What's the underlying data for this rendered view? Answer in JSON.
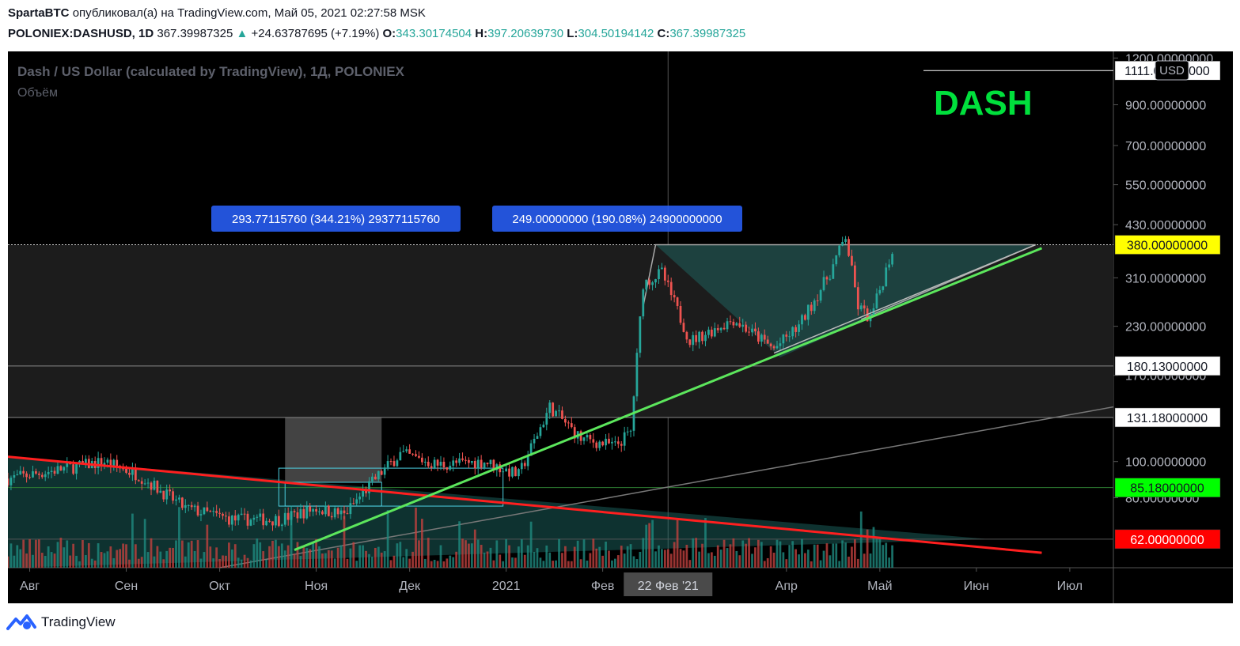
{
  "header": {
    "author": "SpartaBTC",
    "published_text": "опубликовал(а) на TradingView.com, Май 05, 2021 02:27:58 MSK",
    "symbol": "POLONIEX:DASHUSD, 1D",
    "last": "367.39987325",
    "change": "+24.63787695 (+7.19%)",
    "o_label": "O:",
    "o": "343.30174504",
    "h_label": "H:",
    "h": "397.20639730",
    "l_label": "L:",
    "l": "304.50194142",
    "c_label": "C:",
    "c": "367.39987325"
  },
  "chart_data": {
    "type": "candlestick",
    "title": "Dash / US Dollar (calculated by TradingView), 1Д, POLONIEX",
    "subtitle": "Объём",
    "watermark": "DASH",
    "scale": "log",
    "ylim": [
      52,
      1250
    ],
    "y_ticks": [
      1200,
      900,
      700,
      550,
      430,
      310,
      230,
      170,
      100,
      80
    ],
    "y_tick_labels": [
      "1200.00000000",
      "900.00000000",
      "700.00000000",
      "550.00000000",
      "430.00000000",
      "310.00000000",
      "230.00000000",
      "170.00000000",
      "100.00000000",
      "80.00000000"
    ],
    "currency_badge": "USD",
    "price_tags": [
      {
        "value": 1111,
        "label": "1111.00000000",
        "bg": "#ffffff",
        "fg": "#131722"
      },
      {
        "value": 380,
        "label": "380.00000000",
        "bg": "#ffff00",
        "fg": "#131722"
      },
      {
        "value": 180.13,
        "label": "180.13000000",
        "bg": "#ffffff",
        "fg": "#131722"
      },
      {
        "value": 131.18,
        "label": "131.18000000",
        "bg": "#ffffff",
        "fg": "#131722"
      },
      {
        "value": 85.18,
        "label": "85.18000000",
        "bg": "#00ff00",
        "fg": "#131722"
      },
      {
        "value": 62,
        "label": "62.00000000",
        "bg": "#ff0000",
        "fg": "#ffffff"
      }
    ],
    "x_labels": [
      "Авг",
      "Сен",
      "Окт",
      "Ноя",
      "Дек",
      "2021",
      "Фев",
      "Апр",
      "Май",
      "Июн",
      "Июл"
    ],
    "x_start": "2020-07-25",
    "x_end": "2021-07-15",
    "x_label_dates": [
      "2020-08-01",
      "2020-09-01",
      "2020-10-01",
      "2020-11-01",
      "2020-12-01",
      "2021-01-01",
      "2021-02-01",
      "2021-04-01",
      "2021-05-01",
      "2021-06-01",
      "2021-07-01"
    ],
    "crosshair": {
      "label": "22 Фев '21",
      "date": "2021-02-22"
    },
    "measure_labels": [
      {
        "text": "293.77115760 (344.21%) 29377115760",
        "date": "2020-11-10"
      },
      {
        "text": "249.00000000 (190.08%) 24900000000",
        "date": "2021-02-05"
      }
    ],
    "keypoints": [
      {
        "date": "2020-07-25",
        "price": 90
      },
      {
        "date": "2020-08-10",
        "price": 95
      },
      {
        "date": "2020-08-25",
        "price": 100
      },
      {
        "date": "2020-09-05",
        "price": 92
      },
      {
        "date": "2020-09-20",
        "price": 75
      },
      {
        "date": "2020-10-05",
        "price": 70
      },
      {
        "date": "2020-10-20",
        "price": 70
      },
      {
        "date": "2020-11-01",
        "price": 75
      },
      {
        "date": "2020-11-10",
        "price": 72
      },
      {
        "date": "2020-11-20",
        "price": 90
      },
      {
        "date": "2020-11-28",
        "price": 105
      },
      {
        "date": "2020-12-10",
        "price": 98
      },
      {
        "date": "2020-12-25",
        "price": 100
      },
      {
        "date": "2021-01-05",
        "price": 92
      },
      {
        "date": "2021-01-15",
        "price": 140
      },
      {
        "date": "2021-01-25",
        "price": 115
      },
      {
        "date": "2021-02-05",
        "price": 110
      },
      {
        "date": "2021-02-10",
        "price": 120
      },
      {
        "date": "2021-02-14",
        "price": 300
      },
      {
        "date": "2021-02-20",
        "price": 320
      },
      {
        "date": "2021-03-01",
        "price": 210
      },
      {
        "date": "2021-03-15",
        "price": 240
      },
      {
        "date": "2021-03-28",
        "price": 200
      },
      {
        "date": "2021-04-05",
        "price": 230
      },
      {
        "date": "2021-04-15",
        "price": 320
      },
      {
        "date": "2021-04-20",
        "price": 400
      },
      {
        "date": "2021-04-24",
        "price": 260
      },
      {
        "date": "2021-04-28",
        "price": 240
      },
      {
        "date": "2021-05-05",
        "price": 367
      }
    ]
  },
  "footer": {
    "brand": "TradingView"
  }
}
